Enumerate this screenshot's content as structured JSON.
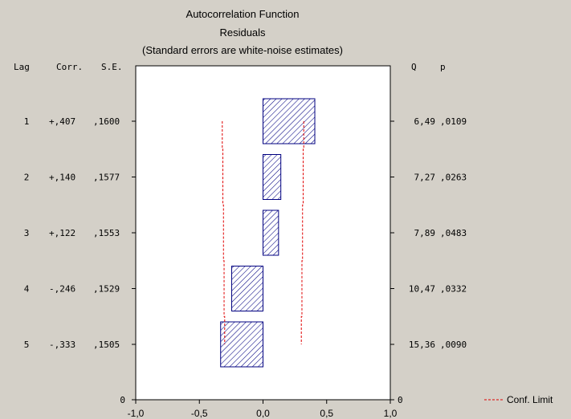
{
  "chart_data": {
    "type": "bar",
    "orientation": "horizontal",
    "title": "Autocorrelation Function",
    "subtitle": "Residuals",
    "note": "(Standard errors are white-noise estimates)",
    "column_headers": {
      "lag": "Lag",
      "corr": "Corr.",
      "se": "S.E.",
      "q": "Q",
      "p": "p"
    },
    "rows": [
      {
        "lag": "1",
        "corr_label": "+,407",
        "se_label": ",1600",
        "q_label": "6,49",
        "p_label": ",0109",
        "corr": 0.407,
        "se": 0.16,
        "q": 6.49,
        "p": 0.0109
      },
      {
        "lag": "2",
        "corr_label": "+,140",
        "se_label": ",1577",
        "q_label": "7,27",
        "p_label": ",0263",
        "corr": 0.14,
        "se": 0.1577,
        "q": 7.27,
        "p": 0.0263
      },
      {
        "lag": "3",
        "corr_label": "+,122",
        "se_label": ",1553",
        "q_label": "7,89",
        "p_label": ",0483",
        "corr": 0.122,
        "se": 0.1553,
        "q": 7.89,
        "p": 0.0483
      },
      {
        "lag": "4",
        "corr_label": "-,246",
        "se_label": ",1529",
        "q_label": "10,47",
        "p_label": ",0332",
        "corr": -0.246,
        "se": 0.1529,
        "q": 10.47,
        "p": 0.0332
      },
      {
        "lag": "5",
        "corr_label": "-,333",
        "se_label": ",1505",
        "q_label": "15,36",
        "p_label": ",0090",
        "corr": -0.333,
        "se": 0.1505,
        "q": 15.36,
        "p": 0.009
      }
    ],
    "zero_row": {
      "left": "0",
      "right": "0"
    },
    "xlim": [
      -1.0,
      1.0
    ],
    "xticks": [
      -1.0,
      -0.5,
      0.0,
      0.5,
      1.0
    ],
    "xtick_labels": [
      "-1,0",
      "-0,5",
      "0,0",
      "0,5",
      "1,0"
    ],
    "conf_limit_multiplier": 2,
    "legend": {
      "label": "Conf. Limit",
      "placement": "bottom-right"
    },
    "colors": {
      "bar_stroke": "#000080",
      "hatch": "#000080",
      "conf_limit": "#e00000",
      "plot_bg": "#ffffff",
      "page_bg": "#d4d0c8"
    }
  }
}
